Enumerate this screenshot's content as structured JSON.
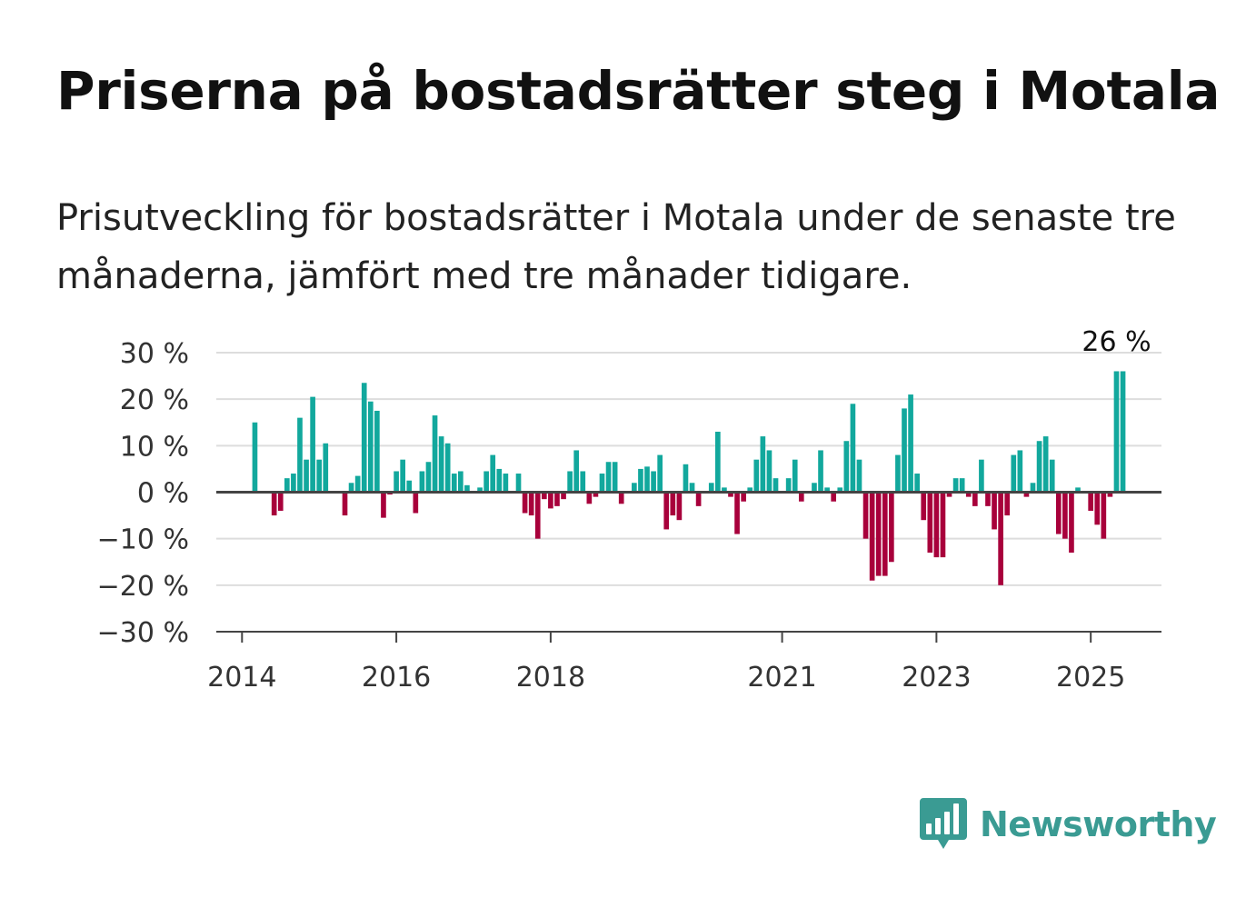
{
  "title": "Priserna på bostadsrätter steg i Motala",
  "subtitle": "Prisutveckling för bostadsrätter i Motala under de senaste tre månaderna, jämfört med tre månader tidigare.",
  "brand": {
    "name": "Newsworthy",
    "icon": "bar-chart-speech-bubble-icon",
    "color": "#3a9b93"
  },
  "colors": {
    "positive": "#12a89d",
    "negative": "#a8003b",
    "grid": "#dddddd",
    "axis": "#444444"
  },
  "chart_data": {
    "type": "bar",
    "ylim": [
      -30,
      30
    ],
    "yticks": [
      30,
      20,
      10,
      0,
      -10,
      -20,
      -30
    ],
    "ytick_labels": [
      "30 %",
      "20 %",
      "10 %",
      "0 %",
      "−10 %",
      "−20 %",
      "−30 %"
    ],
    "xlim": [
      "2013-09",
      "2025-12"
    ],
    "xticks": [
      "2014",
      "2016",
      "2018",
      "2021",
      "2023",
      "2025"
    ],
    "grid": true,
    "annotation": {
      "text": "26 %",
      "x": "2025-05"
    },
    "x": [
      "2014-03",
      "2014-04",
      "2014-05",
      "2014-06",
      "2014-07",
      "2014-08",
      "2014-09",
      "2014-10",
      "2014-11",
      "2014-12",
      "2015-01",
      "2015-02",
      "2015-03",
      "2015-04",
      "2015-05",
      "2015-06",
      "2015-07",
      "2015-08",
      "2015-09",
      "2015-10",
      "2015-11",
      "2015-12",
      "2016-01",
      "2016-02",
      "2016-03",
      "2016-04",
      "2016-05",
      "2016-06",
      "2016-07",
      "2016-08",
      "2016-09",
      "2016-10",
      "2016-11",
      "2016-12",
      "2017-01",
      "2017-02",
      "2017-03",
      "2017-04",
      "2017-05",
      "2017-06",
      "2017-07",
      "2017-08",
      "2017-09",
      "2017-10",
      "2017-11",
      "2017-12",
      "2018-01",
      "2018-02",
      "2018-03",
      "2018-04",
      "2018-05",
      "2018-06",
      "2018-07",
      "2018-08",
      "2018-09",
      "2018-10",
      "2018-11",
      "2018-12",
      "2019-01",
      "2019-02",
      "2019-03",
      "2019-04",
      "2019-05",
      "2019-06",
      "2019-07",
      "2019-08",
      "2019-09",
      "2019-10",
      "2019-11",
      "2019-12",
      "2020-01",
      "2020-02",
      "2020-03",
      "2020-04",
      "2020-05",
      "2020-06",
      "2020-07",
      "2020-08",
      "2020-09",
      "2020-10",
      "2020-11",
      "2020-12",
      "2021-01",
      "2021-02",
      "2021-03",
      "2021-04",
      "2021-05",
      "2021-06",
      "2021-07",
      "2021-08",
      "2021-09",
      "2021-10",
      "2021-11",
      "2021-12",
      "2022-01",
      "2022-02",
      "2022-03",
      "2022-04",
      "2022-05",
      "2022-06",
      "2022-07",
      "2022-08",
      "2022-09",
      "2022-10",
      "2022-11",
      "2022-12",
      "2023-01",
      "2023-02",
      "2023-03",
      "2023-04",
      "2023-05",
      "2023-06",
      "2023-07",
      "2023-08",
      "2023-09",
      "2023-10",
      "2023-11",
      "2023-12",
      "2024-01",
      "2024-02",
      "2024-03",
      "2024-04",
      "2024-05",
      "2024-06",
      "2024-07",
      "2024-08",
      "2024-09",
      "2024-10",
      "2024-11",
      "2024-12",
      "2025-01",
      "2025-02",
      "2025-03",
      "2025-04",
      "2025-05",
      "2025-06"
    ],
    "values": [
      15,
      0,
      0,
      -5,
      -4,
      3,
      4,
      16,
      7,
      20.5,
      7,
      10.5,
      0,
      0,
      -5,
      2,
      3.5,
      23.5,
      19.5,
      17.5,
      -5.5,
      -0.5,
      4.5,
      7,
      2.5,
      -4.5,
      4.5,
      6.5,
      16.5,
      12,
      10.5,
      4,
      4.5,
      1.5,
      0,
      1,
      4.5,
      8,
      5,
      4,
      0,
      4,
      -4.5,
      -5,
      -10,
      -1.5,
      -3.5,
      -3,
      -1.5,
      4.5,
      9,
      4.5,
      -2.5,
      -1,
      4,
      6.5,
      6.5,
      -2.5,
      0,
      2,
      5,
      5.5,
      4.5,
      8,
      -8,
      -5,
      -6,
      6,
      2,
      -3,
      0,
      2,
      13,
      1,
      -1,
      -9,
      -2,
      1,
      7,
      12,
      9,
      3,
      0,
      3,
      7,
      -2,
      0,
      2,
      9,
      1,
      -2,
      1,
      11,
      19,
      7,
      -10,
      -19,
      -18,
      -18,
      -15,
      8,
      18,
      21,
      4,
      -6,
      -13,
      -14,
      -14,
      -1,
      3,
      3,
      -1,
      -3,
      7,
      -3,
      -8,
      -20,
      -5,
      8,
      9,
      -1,
      2,
      11,
      12,
      7,
      -9,
      -10,
      -13,
      1,
      0,
      -4,
      -7,
      -10,
      -1,
      26,
      26
    ]
  }
}
